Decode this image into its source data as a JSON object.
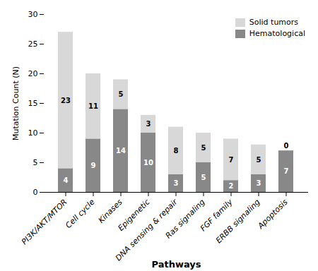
{
  "chart_data": {
    "type": "bar",
    "stacked": true,
    "categories": [
      "PI3K/AKT/MTOR",
      "Cell cycle",
      "Kinases",
      "Epigenetic",
      "DNA sensing & repair",
      "Ras signaling",
      "FGF family",
      "ERBB signaling",
      "Apoptosis"
    ],
    "series": [
      {
        "name": "Hematological",
        "color": "#888888",
        "values": [
          4,
          9,
          14,
          10,
          3,
          5,
          2,
          3,
          7
        ]
      },
      {
        "name": "Solid tumors",
        "color": "#d8d8d8",
        "values": [
          23,
          11,
          5,
          3,
          8,
          5,
          7,
          5,
          0
        ]
      }
    ],
    "xlabel": "Pathways",
    "ylabel": "Mutation Count (N)",
    "ylim": [
      0,
      30
    ],
    "yticks": [
      0,
      5,
      10,
      15,
      20,
      25,
      30
    ],
    "data_labels": true,
    "legend": "upper right",
    "grid": false
  }
}
